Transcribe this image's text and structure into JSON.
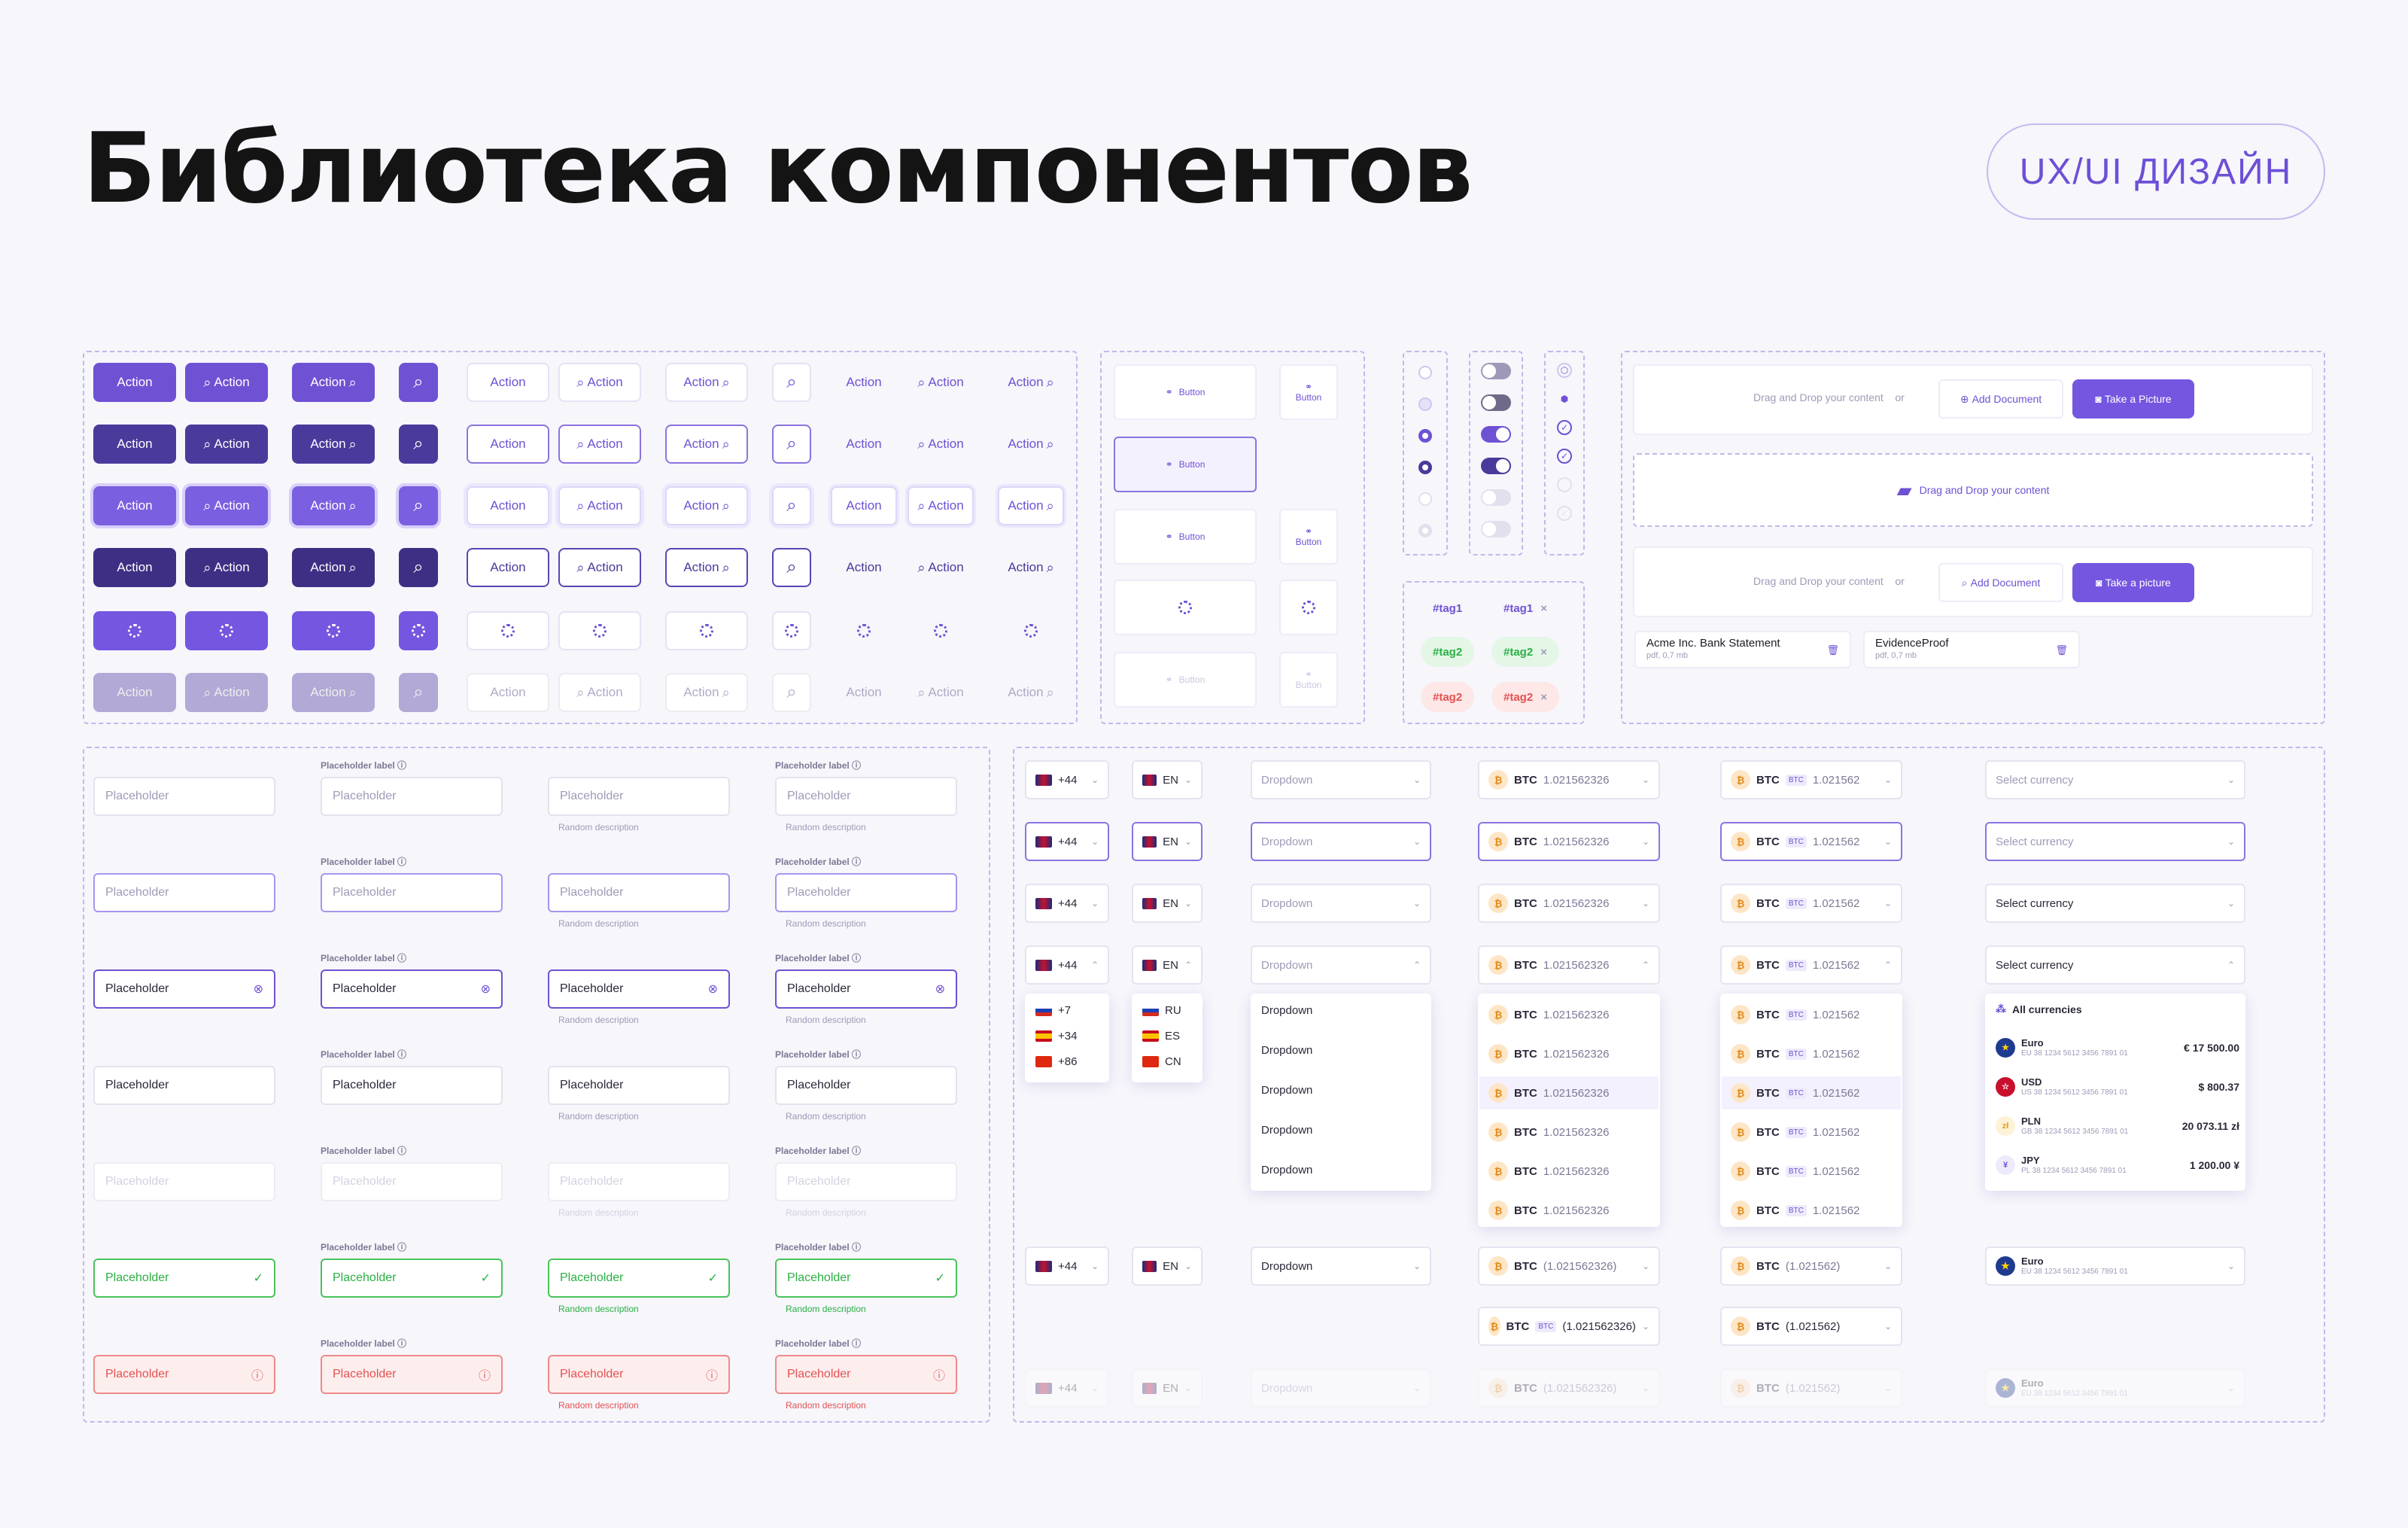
{
  "header": {
    "title": "Библиотека компонентов",
    "badge": "UX/UI ДИЗАЙН"
  },
  "buttons": {
    "action": "Action",
    "button": "Button"
  },
  "dropzone": {
    "text": "Drag and Drop your content",
    "or": "or",
    "add_document": "Add Document",
    "take_picture": "Take a Picture",
    "take_picture_alt": "Take a picture"
  },
  "files": [
    {
      "name": "Acme Inc. Bank Statement",
      "meta": "pdf, 0,7 mb"
    },
    {
      "name": "EvidenceProof",
      "meta": "pdf, 0,7 mb"
    }
  ],
  "tags": {
    "t1": "#tag1",
    "t2": "#tag2"
  },
  "inputs": {
    "placeholder": "Placeholder",
    "label": "Placeholder label",
    "description": "Random description"
  },
  "phone": {
    "code": "+44",
    "options": [
      "+7",
      "+34",
      "+86"
    ]
  },
  "lang": {
    "code": "EN",
    "options": [
      "RU",
      "ES",
      "CN"
    ]
  },
  "dropdown": {
    "label": "Dropdown"
  },
  "crypto": {
    "symbol": "BTC",
    "value": "1.021562326",
    "value_short": "1.021562",
    "value_paren": "(1.021562326)",
    "value_short_paren": "(1.021562)",
    "ticker": "BTC"
  },
  "currency": {
    "placeholder": "Select currency",
    "all": "All currencies",
    "items": [
      {
        "name": "Euro",
        "iban": "EU 38 1234 5612 3456 7891 01",
        "amount": "€ 17 500.00"
      },
      {
        "name": "USD",
        "iban": "US 38 1234 5612 3456 7891 01",
        "amount": "$ 800.37"
      },
      {
        "name": "PLN",
        "iban": "GB 38 1234 5612 3456 7891 01",
        "amount": "20 073.11 zł"
      },
      {
        "name": "JPY",
        "iban": "PL 38 1234 5612 3456 7891 01",
        "amount": "1 200.00 ¥"
      }
    ]
  }
}
